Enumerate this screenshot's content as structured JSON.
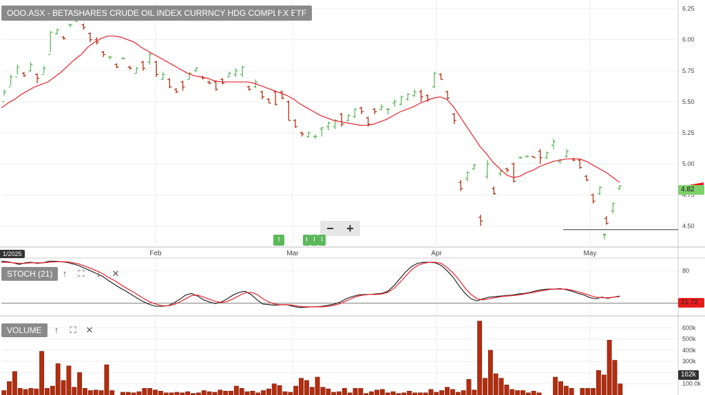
{
  "chart_data": [
    {
      "type": "ohlc",
      "title": "OOO.ASX - BETASHARES CRUDE OIL INDEX CURRNCY HDG COMPLEX ETF",
      "y_ticks": [
        "6.25",
        "6.00",
        "5.75",
        "5.50",
        "5.25",
        "5.00",
        "4.75",
        "4.50"
      ],
      "ylim": [
        4.33,
        6.32
      ],
      "x_labels": [
        "Feb",
        "Mar",
        "Apr",
        "May"
      ],
      "date_badge": "1/2025",
      "last_price": "4.82",
      "ma_price_label": "",
      "support_line": 4.47,
      "series": [
        {
          "name": "OHLC",
          "values": [
            [
              5.5,
              5.6,
              5.55,
              5.58
            ],
            [
              5.62,
              5.72,
              5.63,
              5.7
            ],
            [
              5.7,
              5.8,
              5.72,
              5.78
            ],
            [
              5.73,
              5.74,
              5.7,
              5.71
            ],
            [
              5.75,
              5.82,
              5.74,
              5.8
            ],
            [
              5.72,
              5.73,
              5.65,
              5.69
            ],
            [
              5.72,
              5.79,
              5.73,
              5.77
            ],
            [
              5.88,
              6.07,
              5.9,
              6.06
            ],
            [
              6.05,
              6.09,
              6.04,
              6.08
            ],
            [
              6.02,
              6.03,
              6.0,
              6.01
            ],
            [
              6.12,
              6.13,
              6.1,
              6.12
            ],
            [
              6.15,
              6.17,
              6.14,
              6.16
            ],
            [
              6.12,
              6.13,
              6.08,
              6.1
            ],
            [
              6.05,
              6.06,
              5.98,
              6.0
            ],
            [
              6.0,
              6.02,
              5.96,
              5.98
            ],
            [
              5.9,
              5.91,
              5.86,
              5.88
            ],
            [
              5.86,
              5.87,
              5.84,
              5.86
            ],
            [
              5.8,
              5.81,
              5.77,
              5.78
            ],
            [
              5.85,
              5.86,
              5.84,
              5.85
            ],
            [
              5.78,
              5.79,
              5.76,
              5.77
            ],
            [
              5.73,
              5.78,
              5.73,
              5.77
            ],
            [
              5.82,
              5.83,
              5.75,
              5.77
            ],
            [
              5.82,
              5.9,
              5.8,
              5.88
            ],
            [
              5.82,
              5.83,
              5.7,
              5.72
            ],
            [
              5.68,
              5.74,
              5.68,
              5.72
            ],
            [
              5.68,
              5.69,
              5.61,
              5.62
            ],
            [
              5.6,
              5.61,
              5.57,
              5.58
            ],
            [
              5.66,
              5.67,
              5.59,
              5.62
            ],
            [
              5.68,
              5.74,
              5.68,
              5.73
            ],
            [
              5.75,
              5.78,
              5.74,
              5.77
            ],
            [
              5.7,
              5.71,
              5.68,
              5.69
            ],
            [
              5.66,
              5.67,
              5.64,
              5.65
            ],
            [
              5.66,
              5.67,
              5.59,
              5.6
            ],
            [
              5.68,
              5.69,
              5.64,
              5.65
            ],
            [
              5.7,
              5.74,
              5.7,
              5.73
            ],
            [
              5.72,
              5.77,
              5.7,
              5.75
            ],
            [
              5.72,
              5.79,
              5.7,
              5.78
            ],
            [
              5.62,
              5.63,
              5.59,
              5.6
            ],
            [
              5.62,
              5.68,
              5.61,
              5.66
            ],
            [
              5.58,
              5.59,
              5.52,
              5.54
            ],
            [
              5.52,
              5.53,
              5.49,
              5.49
            ],
            [
              5.58,
              5.59,
              5.47,
              5.48
            ],
            [
              5.58,
              5.59,
              5.52,
              5.53
            ],
            [
              5.5,
              5.51,
              5.35,
              5.35
            ],
            [
              5.35,
              5.36,
              5.29,
              5.3
            ],
            [
              5.25,
              5.26,
              5.22,
              5.24
            ],
            [
              5.22,
              5.26,
              5.21,
              5.25
            ],
            [
              5.22,
              5.24,
              5.2,
              5.22
            ],
            [
              5.28,
              5.3,
              5.22,
              5.29
            ],
            [
              5.3,
              5.34,
              5.27,
              5.33
            ],
            [
              5.3,
              5.36,
              5.28,
              5.35
            ],
            [
              5.4,
              5.41,
              5.3,
              5.32
            ],
            [
              5.35,
              5.4,
              5.34,
              5.39
            ],
            [
              5.38,
              5.45,
              5.37,
              5.44
            ],
            [
              5.45,
              5.46,
              5.4,
              5.42
            ],
            [
              5.37,
              5.38,
              5.3,
              5.32
            ],
            [
              5.44,
              5.45,
              5.4,
              5.42
            ],
            [
              5.44,
              5.48,
              5.43,
              5.46
            ],
            [
              5.44,
              5.45,
              5.4,
              5.44
            ],
            [
              5.49,
              5.52,
              5.46,
              5.5
            ],
            [
              5.48,
              5.55,
              5.47,
              5.54
            ],
            [
              5.52,
              5.57,
              5.51,
              5.56
            ],
            [
              5.55,
              5.6,
              5.54,
              5.58
            ],
            [
              5.58,
              5.6,
              5.5,
              5.54
            ],
            [
              5.55,
              5.56,
              5.5,
              5.52
            ],
            [
              5.62,
              5.74,
              5.61,
              5.73
            ],
            [
              5.72,
              5.73,
              5.68,
              5.68
            ],
            [
              5.58,
              5.59,
              5.52,
              5.53
            ],
            [
              5.4,
              5.41,
              5.32,
              5.35
            ],
            [
              4.85,
              4.87,
              4.78,
              4.8
            ],
            [
              4.88,
              4.94,
              4.86,
              4.93
            ],
            [
              4.96,
              5.0,
              4.95,
              4.99
            ],
            [
              4.57,
              4.59,
              4.5,
              4.54
            ],
            [
              4.9,
              5.03,
              4.88,
              5.0
            ],
            [
              4.8,
              4.82,
              4.75,
              4.76
            ],
            [
              4.92,
              4.95,
              4.9,
              4.94
            ],
            [
              4.96,
              4.97,
              4.93,
              4.95
            ],
            [
              5.0,
              5.01,
              4.85,
              4.86
            ],
            [
              5.05,
              5.06,
              5.04,
              5.05
            ],
            [
              5.06,
              5.07,
              5.05,
              5.06
            ],
            [
              5.06,
              5.06,
              5.05,
              5.05
            ],
            [
              5.1,
              5.12,
              5.0,
              5.05
            ],
            [
              5.05,
              5.1,
              5.04,
              5.09
            ],
            [
              5.15,
              5.2,
              5.12,
              5.18
            ],
            [
              5.02,
              5.04,
              5.0,
              5.03
            ],
            [
              5.06,
              5.12,
              5.05,
              5.1
            ],
            [
              5.04,
              5.05,
              5.02,
              5.03
            ],
            [
              5.03,
              5.04,
              4.96,
              4.97
            ],
            [
              4.9,
              4.91,
              4.86,
              4.87
            ],
            [
              4.75,
              4.76,
              4.68,
              4.7
            ],
            [
              4.76,
              4.82,
              4.75,
              4.81
            ],
            [
              4.56,
              4.58,
              4.51,
              4.52
            ],
            [
              4.62,
              4.69,
              4.6,
              4.68
            ],
            [
              4.8,
              4.83,
              4.79,
              4.82
            ]
          ]
        },
        {
          "name": "MA",
          "values": [
            5.45,
            5.49,
            5.52,
            5.56,
            5.59,
            5.62,
            5.64,
            5.66,
            5.7,
            5.74,
            5.79,
            5.84,
            5.88,
            5.94,
            5.98,
            6.01,
            6.03,
            6.03,
            6.02,
            6.0,
            5.98,
            5.94,
            5.91,
            5.88,
            5.85,
            5.82,
            5.79,
            5.76,
            5.73,
            5.71,
            5.7,
            5.69,
            5.67,
            5.66,
            5.66,
            5.66,
            5.66,
            5.66,
            5.65,
            5.63,
            5.61,
            5.59,
            5.57,
            5.55,
            5.52,
            5.48,
            5.45,
            5.42,
            5.39,
            5.37,
            5.35,
            5.34,
            5.33,
            5.32,
            5.31,
            5.31,
            5.32,
            5.34,
            5.36,
            5.39,
            5.42,
            5.44,
            5.46,
            5.49,
            5.51,
            5.53,
            5.54,
            5.52,
            5.46,
            5.38,
            5.3,
            5.22,
            5.14,
            5.08,
            5.01,
            4.96,
            4.91,
            4.89,
            4.9,
            4.93,
            4.95,
            4.98,
            5.0,
            5.02,
            5.03,
            5.04,
            5.04,
            5.04,
            5.02,
            4.99,
            4.96,
            4.93,
            4.89,
            4.85
          ]
        }
      ]
    },
    {
      "type": "line",
      "name_label": "STOCH (21)",
      "ylim": [
        0,
        100
      ],
      "y_ticks": [
        "80"
      ],
      "value_label": "21.72",
      "series": [
        {
          "name": "K",
          "values": [
            98,
            97,
            95,
            92,
            95,
            96,
            94,
            95,
            98,
            98,
            97,
            96,
            93,
            90,
            85,
            80,
            75,
            70,
            62,
            55,
            48,
            42,
            35,
            28,
            22,
            17,
            14,
            14,
            15,
            20,
            27,
            35,
            38,
            33,
            26,
            22,
            19,
            22,
            28,
            35,
            40,
            42,
            36,
            26,
            18,
            17,
            16,
            17,
            17,
            14,
            12,
            12,
            13,
            13,
            14,
            16,
            18,
            22,
            28,
            32,
            35,
            36,
            36,
            37,
            38,
            42,
            52,
            65,
            78,
            88,
            94,
            96,
            96,
            95,
            90,
            80,
            68,
            52,
            38,
            28,
            24,
            28,
            31,
            32,
            33,
            34,
            35,
            37,
            38,
            40,
            43,
            45,
            46,
            46,
            47,
            45,
            42,
            38,
            35,
            30,
            28,
            31,
            29,
            31,
            33
          ]
        },
        {
          "name": "D",
          "values": [
            96,
            96,
            95,
            94,
            94,
            95,
            95,
            95,
            96,
            97,
            97,
            97,
            95,
            93,
            89,
            85,
            80,
            75,
            68,
            62,
            55,
            48,
            42,
            35,
            28,
            22,
            18,
            15,
            15,
            17,
            22,
            28,
            34,
            35,
            31,
            27,
            23,
            21,
            23,
            28,
            34,
            39,
            40,
            36,
            28,
            22,
            18,
            17,
            17,
            16,
            14,
            13,
            13,
            13,
            13,
            14,
            16,
            19,
            24,
            29,
            33,
            35,
            36,
            36,
            37,
            40,
            47,
            58,
            70,
            82,
            90,
            94,
            96,
            96,
            94,
            86,
            76,
            63,
            48,
            36,
            28,
            26,
            28,
            30,
            32,
            33,
            34,
            35,
            37,
            39,
            41,
            43,
            45,
            46,
            46,
            46,
            44,
            41,
            38,
            34,
            31,
            30,
            30,
            31,
            32
          ]
        }
      ]
    },
    {
      "type": "bar",
      "name_label": "VOLUME",
      "ylim": [
        0,
        700000
      ],
      "y_ticks": [
        "600k",
        "500k",
        "400k",
        "300k",
        "200k",
        "100.0k"
      ],
      "value_label": "162k",
      "values": [
        40000,
        120000,
        210000,
        60000,
        50000,
        60000,
        55000,
        390000,
        60000,
        80000,
        280000,
        130000,
        260000,
        70000,
        200000,
        60000,
        40000,
        45000,
        40000,
        270000,
        40000,
        0,
        25000,
        25000,
        20000,
        30000,
        60000,
        60000,
        45000,
        35000,
        20000,
        20000,
        25000,
        20000,
        30000,
        15000,
        20000,
        40000,
        30000,
        25000,
        45000,
        35000,
        35000,
        80000,
        60000,
        30000,
        35000,
        20000,
        40000,
        55000,
        100000,
        85000,
        30000,
        25000,
        80000,
        150000,
        130000,
        70000,
        160000,
        70000,
        55000,
        25000,
        30000,
        60000,
        20000,
        60000,
        60000,
        15000,
        30000,
        45000,
        50000,
        20000,
        30000,
        15000,
        20000,
        35000,
        20000,
        20000,
        20000,
        50000,
        25000,
        40000,
        70000,
        50000,
        25000,
        40000,
        140000,
        45000,
        660000,
        150000,
        400000,
        190000,
        150000,
        90000,
        50000,
        40000,
        40000,
        20000,
        35000,
        20000,
        0,
        0,
        160000,
        120000,
        80000,
        60000,
        0,
        60000,
        60000,
        60000,
        220000,
        180000,
        490000,
        310000,
        100000
      ]
    }
  ],
  "toolbar": {
    "zoom_out": "−",
    "zoom_in": "+",
    "events": [
      "I",
      "I",
      "I",
      "I"
    ]
  },
  "icons": {
    "expand": "expand-icon",
    "down_arrow": "down-arrow-icon",
    "up_arrow": "up-arrow-icon",
    "close": "close-icon",
    "signal_arrow": "up-signal-arrow-icon"
  },
  "colors": {
    "up_bar": "#5cb85c",
    "down_bar": "#b03010",
    "ma_line": "#e8202a",
    "stoch_k": "#222222",
    "stoch_d": "#e8202a",
    "volume_bar": "#b32d0e",
    "last_price_tag": "#7fcf6a",
    "ma_tag": "#e81c1c"
  }
}
